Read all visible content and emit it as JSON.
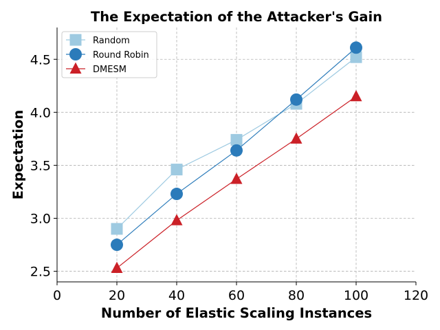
{
  "chart_data": {
    "type": "line",
    "title": "The Expectation of the Attacker's Gain",
    "xlabel": "Number of Elastic Scaling Instances",
    "ylabel": "Expectation",
    "xlim": [
      0,
      120
    ],
    "ylim": [
      2.4,
      4.8
    ],
    "xticks": [
      0,
      20,
      40,
      60,
      80,
      100,
      120
    ],
    "yticks": [
      2.5,
      3.0,
      3.5,
      4.0,
      4.5
    ],
    "grid": true,
    "legend_position": "top-left",
    "series": [
      {
        "name": "Random",
        "marker": "square",
        "color": "#9ecae1",
        "x": [
          20,
          40,
          60,
          80,
          100
        ],
        "y": [
          2.9,
          3.46,
          3.74,
          4.08,
          4.52
        ]
      },
      {
        "name": "Round Robin",
        "marker": "circle",
        "color": "#2b7bba",
        "x": [
          20,
          40,
          60,
          80,
          100
        ],
        "y": [
          2.75,
          3.23,
          3.64,
          4.12,
          4.61
        ]
      },
      {
        "name": "DMESM",
        "marker": "triangle",
        "color": "#cb2027",
        "x": [
          20,
          40,
          60,
          80,
          100
        ],
        "y": [
          2.53,
          2.98,
          3.37,
          3.75,
          4.15
        ]
      }
    ]
  }
}
